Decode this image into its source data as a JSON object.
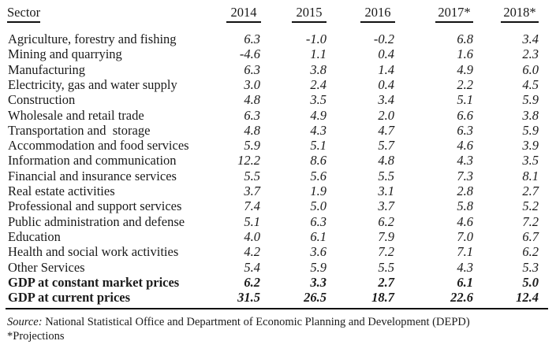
{
  "table": {
    "header": {
      "sector": "Sector",
      "years": [
        "2014",
        "2015",
        "2016",
        "2017*",
        "2018*"
      ]
    },
    "rows": [
      {
        "sector": "Agriculture, forestry and fishing",
        "values": [
          "6.3",
          "-1.0",
          "-0.2",
          "6.8",
          "3.4"
        ]
      },
      {
        "sector": "Mining and quarrying",
        "values": [
          "-4.6",
          "1.1",
          "0.4",
          "1.6",
          "2.3"
        ]
      },
      {
        "sector": "Manufacturing",
        "values": [
          "6.3",
          "3.8",
          "1.4",
          "4.9",
          "6.0"
        ]
      },
      {
        "sector": "Electricity, gas and water supply",
        "values": [
          "3.0",
          "2.4",
          "0.4",
          "2.2",
          "4.5"
        ]
      },
      {
        "sector": "Construction",
        "values": [
          "4.8",
          "3.5",
          "3.4",
          "5.1",
          "5.9"
        ]
      },
      {
        "sector": "Wholesale and retail trade",
        "values": [
          "6.3",
          "4.9",
          "2.0",
          "6.6",
          "3.8"
        ]
      },
      {
        "sector": "Transportation and  storage",
        "values": [
          "4.8",
          "4.3",
          "4.7",
          "6.3",
          "5.9"
        ]
      },
      {
        "sector": "Accommodation and food services",
        "values": [
          "5.9",
          "5.1",
          "5.7",
          "4.6",
          "3.9"
        ]
      },
      {
        "sector": "Information and communication",
        "values": [
          "12.2",
          "8.6",
          "4.8",
          "4.3",
          "3.5"
        ]
      },
      {
        "sector": "Financial and insurance services",
        "values": [
          "5.5",
          "5.6",
          "5.5",
          "7.3",
          "8.1"
        ]
      },
      {
        "sector": "Real estate activities",
        "values": [
          "3.7",
          "1.9",
          "3.1",
          "2.8",
          "2.7"
        ]
      },
      {
        "sector": "Professional and support services",
        "values": [
          "7.4",
          "5.0",
          "3.7",
          "5.8",
          "5.2"
        ]
      },
      {
        "sector": "Public administration and defense",
        "values": [
          "5.1",
          "6.3",
          "6.2",
          "4.6",
          "7.2"
        ]
      },
      {
        "sector": "Education",
        "values": [
          "4.0",
          "6.1",
          "7.9",
          "7.0",
          "6.7"
        ]
      },
      {
        "sector": "Health and social work activities",
        "values": [
          "4.2",
          "3.6",
          "7.2",
          "7.1",
          "6.2"
        ]
      },
      {
        "sector": "Other Services",
        "values": [
          "5.4",
          "5.9",
          "5.5",
          "4.3",
          "5.3"
        ]
      },
      {
        "sector": "GDP at constant market prices",
        "values": [
          "6.2",
          "3.3",
          "2.7",
          "6.1",
          "5.0"
        ],
        "bold": true
      },
      {
        "sector": "GDP at current prices",
        "values": [
          "31.5",
          "26.5",
          "18.7",
          "22.6",
          "12.4"
        ],
        "bold": true
      }
    ]
  },
  "footer": {
    "source_label": "Source:",
    "source_text": " National Statistical Office and Department of Economic Planning and Development (DEPD)",
    "note": "*Projections"
  }
}
